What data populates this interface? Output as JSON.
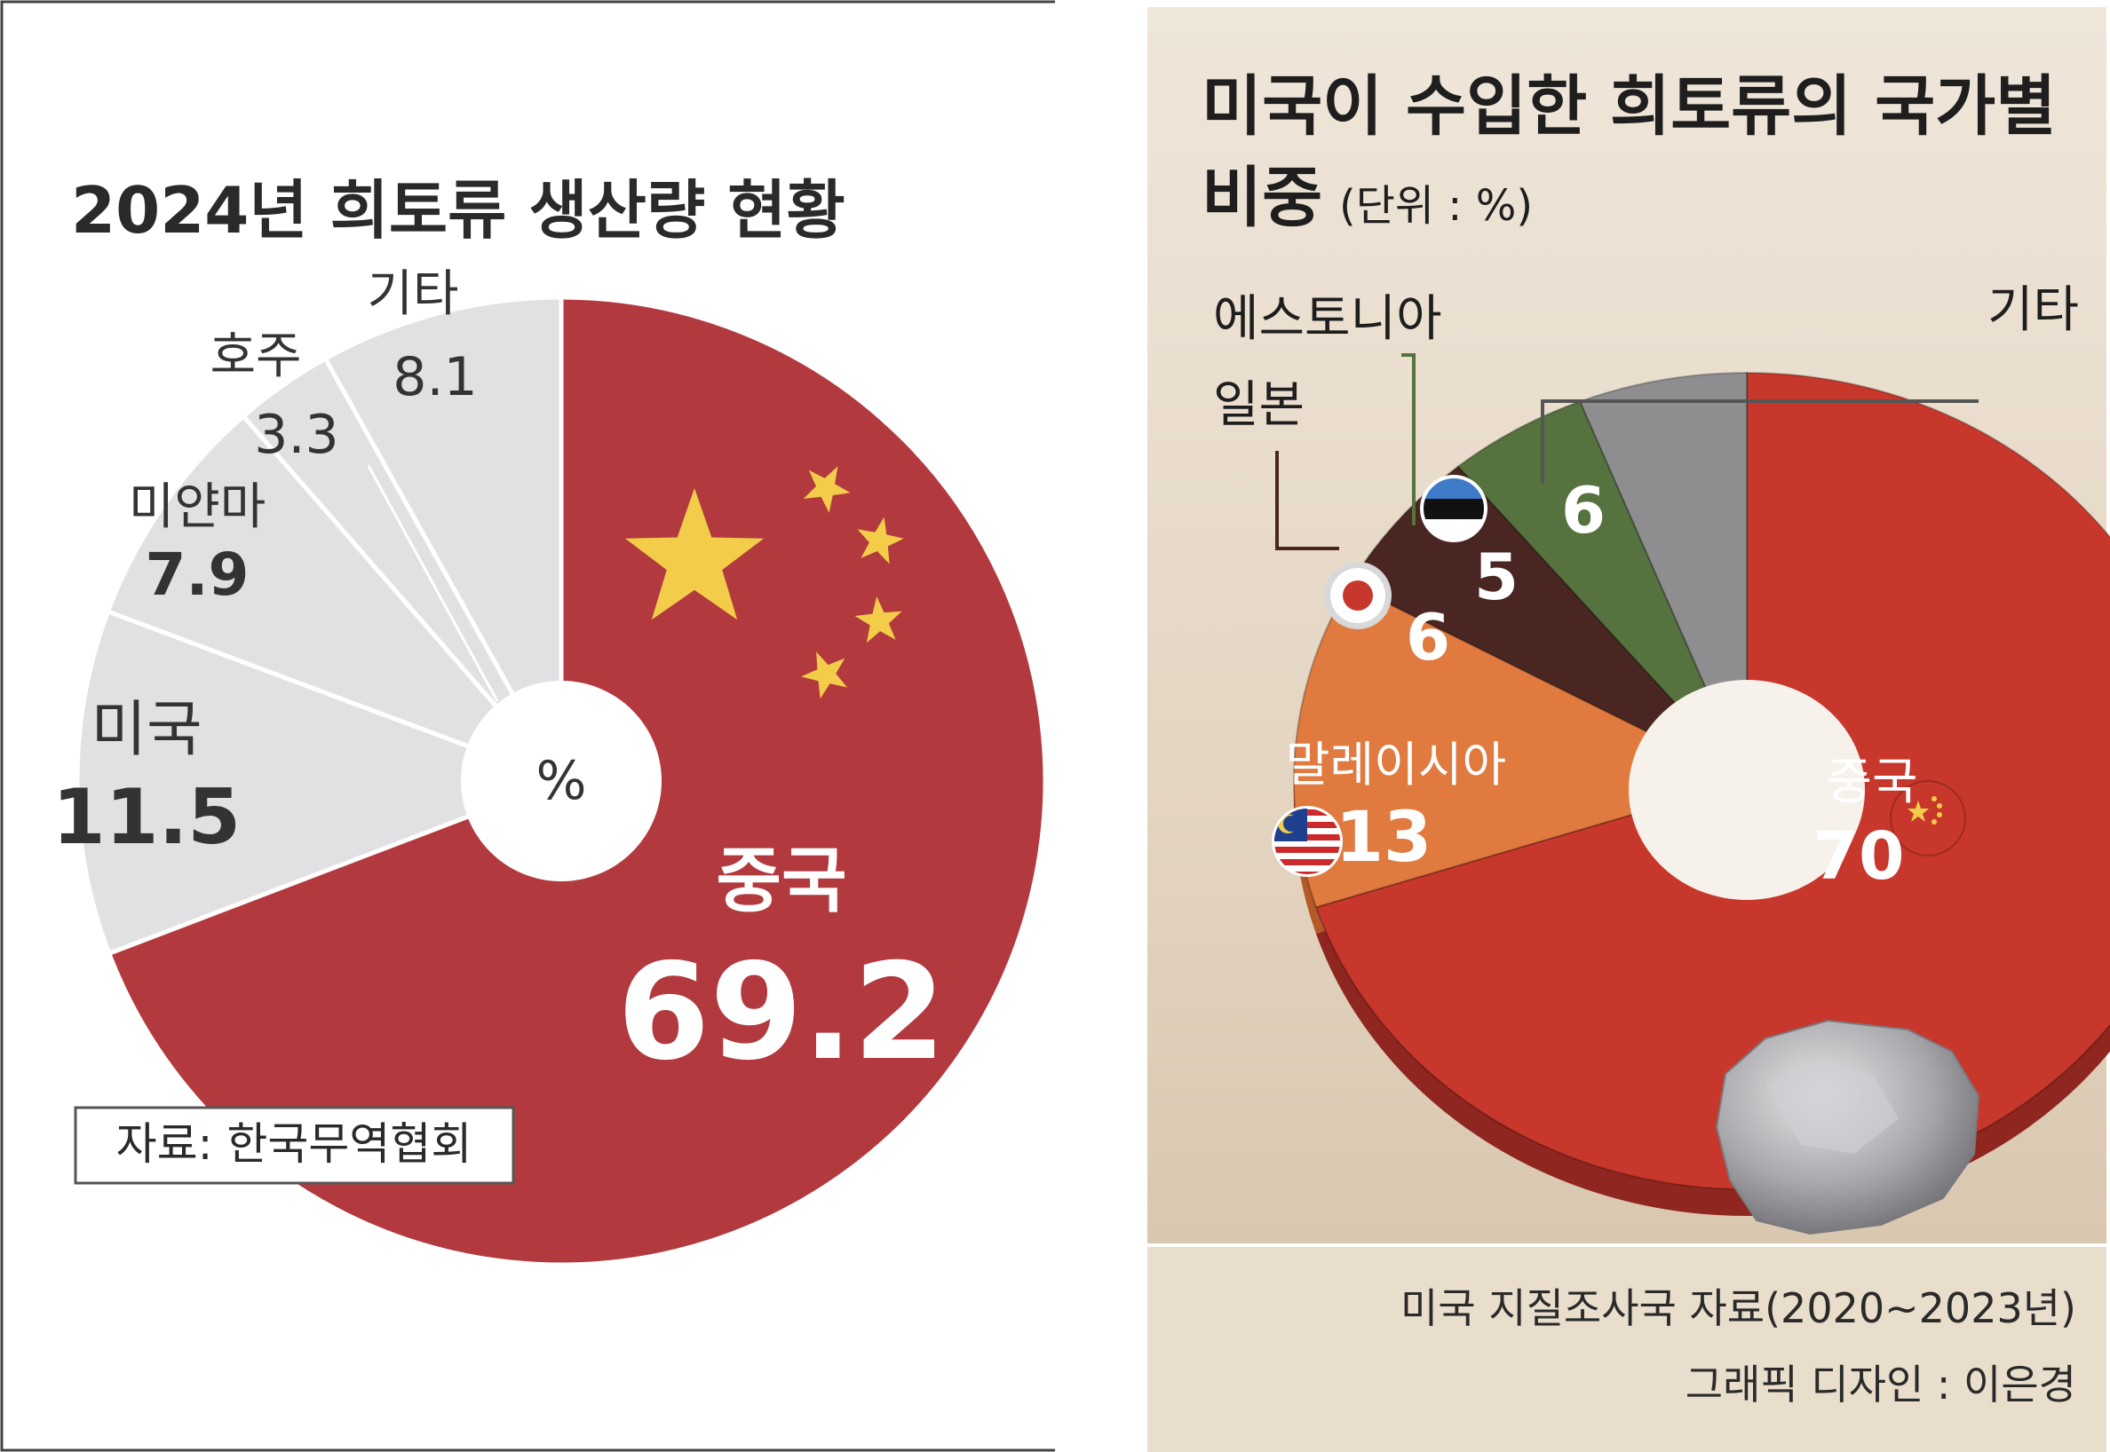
{
  "chart_data": [
    {
      "type": "pie",
      "title": "2024년 희토류 생산량 현황",
      "center_label": "%",
      "source": "자료: 한국무역협회",
      "colors": {
        "china": "#b23a3f",
        "others": "#e1e1e3",
        "star": "#f3cd4a"
      },
      "slices": [
        {
          "label": "중국",
          "value": 69.2,
          "value_text": "69.2"
        },
        {
          "label": "미국",
          "value": 11.5,
          "value_text": "11.5"
        },
        {
          "label": "미얀마",
          "value": 7.9,
          "value_text": "7.9"
        },
        {
          "label": "호주",
          "value": 3.3,
          "value_text": "3.3"
        },
        {
          "label": "기타",
          "value": 8.1,
          "value_text": "8.1"
        }
      ]
    },
    {
      "type": "pie",
      "title": "미국이 수입한 희토류의 국가별",
      "title_line2": "비중",
      "unit_note": "(단위 : %)",
      "source": "미국 지질조사국 자료(2020~2023년)",
      "credit": "그래픽 디자인 : 이은경",
      "colors": {
        "china": "#c8372c",
        "malaysia": "#e07a3f",
        "japan": "#4a2622",
        "estonia": "#55723f",
        "others": "#8e8e91",
        "background": "#e8dccc"
      },
      "slices": [
        {
          "label": "중국",
          "value": 70,
          "value_text": "70"
        },
        {
          "label": "말레이시아",
          "value": 13,
          "value_text": "13"
        },
        {
          "label": "일본",
          "value": 6,
          "value_text": "6"
        },
        {
          "label": "에스토니아",
          "value": 5,
          "value_text": "5"
        },
        {
          "label": "기타",
          "value": 6,
          "value_text": "6"
        }
      ]
    }
  ]
}
